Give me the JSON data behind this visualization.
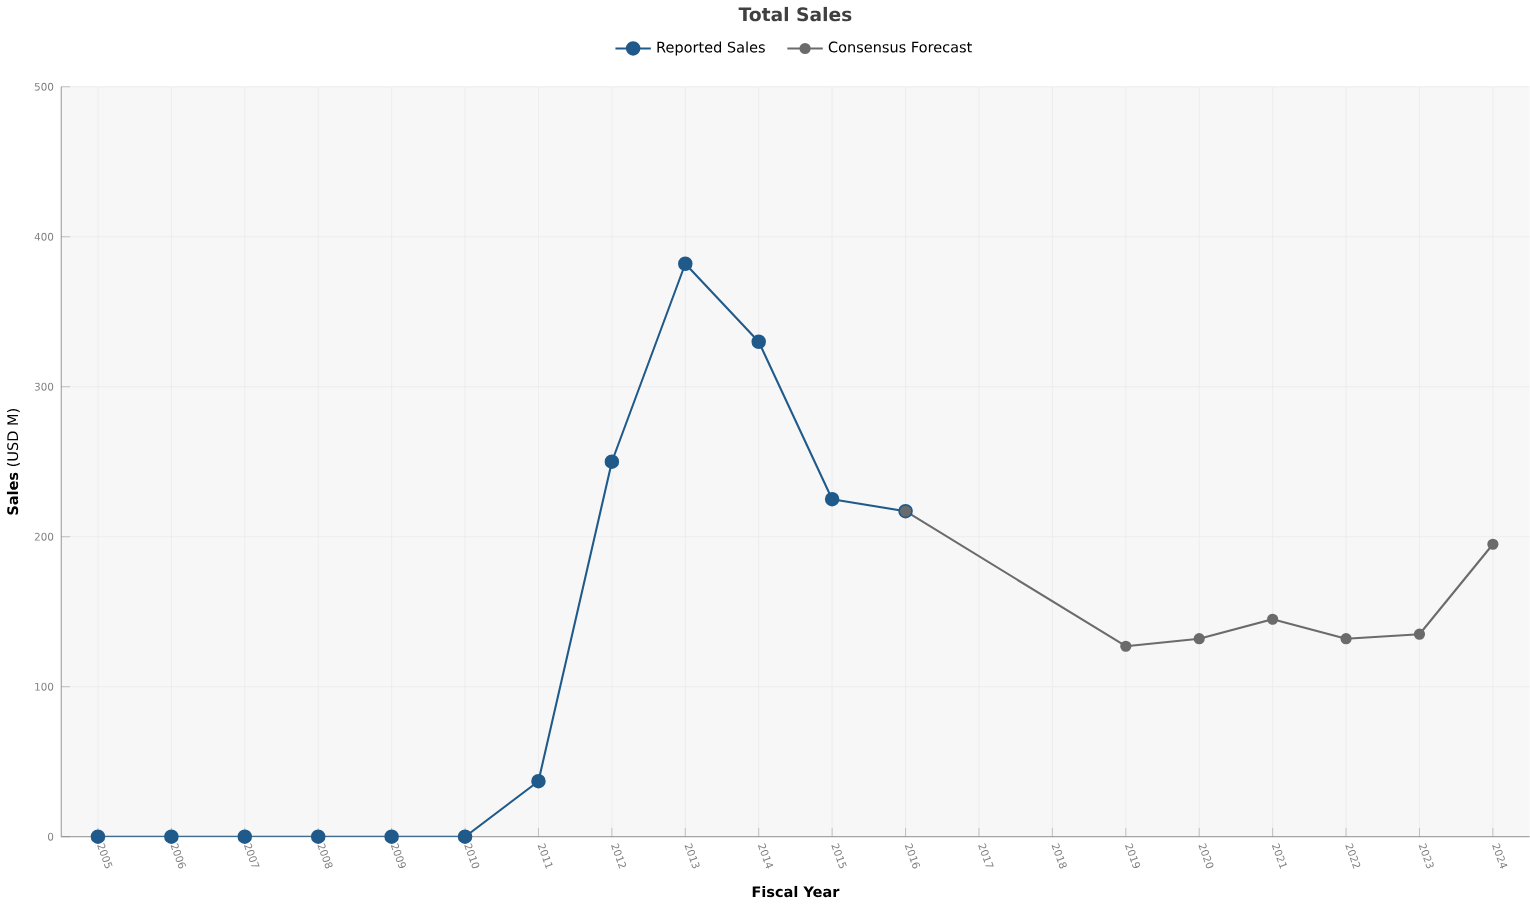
{
  "chart_data": {
    "type": "line",
    "title": "Total Sales",
    "xlabel": "Fiscal Year",
    "ylabel": "**Sales** (USD M)",
    "categories": [
      "2005",
      "2006",
      "2007",
      "2008",
      "2009",
      "2010",
      "2011",
      "2012",
      "2013",
      "2014",
      "2015",
      "2016",
      "2017",
      "2018",
      "2019",
      "2020",
      "2021",
      "2022",
      "2023",
      "2024"
    ],
    "series": [
      {
        "name": "Reported Sales",
        "color": "#1f5a8a",
        "values": [
          0,
          0,
          0,
          0,
          0,
          0,
          37,
          250,
          382,
          330,
          225,
          217,
          null,
          null,
          null,
          null,
          null,
          null,
          null,
          null
        ]
      },
      {
        "name": "Consensus Forecast",
        "color": "#6b6b6b",
        "values": [
          null,
          null,
          null,
          null,
          null,
          null,
          null,
          null,
          null,
          null,
          null,
          217,
          null,
          null,
          127,
          132,
          145,
          132,
          135,
          195
        ]
      }
    ],
    "ylim": [
      0,
      500
    ],
    "yticks": [
      0,
      100,
      200,
      300,
      400,
      500
    ],
    "grid": true,
    "legend": "top",
    "marker": "circle",
    "line_style": "solid"
  }
}
